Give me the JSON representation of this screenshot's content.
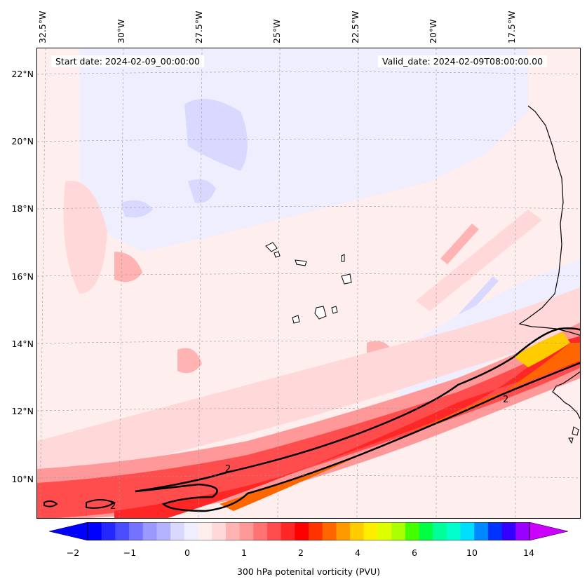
{
  "header": {
    "start_date": "Start date: 2024-02-09_00:00:00",
    "valid_date": "Valid_date: 2024-02-09T08:00:00.00"
  },
  "map": {
    "lon_labels": [
      "32.5°W",
      "30°W",
      "27.5°W",
      "25°W",
      "22.5°W",
      "20°W",
      "17.5°W"
    ],
    "lat_labels": [
      "22°N",
      "20°N",
      "18°N",
      "16°N",
      "14°N",
      "12°N",
      "10°N"
    ],
    "contour_labels": [
      "2",
      "2",
      "2"
    ],
    "contour_level": 2
  },
  "colorbar": {
    "label": "300 hPa potenital vorticity (PVU)",
    "ticks": [
      "−2",
      "−1",
      "0",
      "1",
      "2",
      "4",
      "6",
      "10",
      "14"
    ],
    "colors": [
      "#0000ff",
      "#2626ff",
      "#4c4cff",
      "#7373ff",
      "#9999ff",
      "#b3b3ff",
      "#d9d9ff",
      "#eeeeff",
      "#ffeeee",
      "#ffd9d9",
      "#ffb3b3",
      "#ff9999",
      "#ff7373",
      "#ff4c4c",
      "#ff2626",
      "#ff0000",
      "#ff3300",
      "#ff6600",
      "#ff9900",
      "#ffcc00",
      "#ffee00",
      "#ddff00",
      "#aaff00",
      "#44ff00",
      "#00ff44",
      "#00ff99",
      "#00ffcc",
      "#00ddff",
      "#0088ff",
      "#0033ff",
      "#3300ff",
      "#9900ff"
    ],
    "under_color": "#0000ff",
    "over_color": "#cc00ff"
  }
}
